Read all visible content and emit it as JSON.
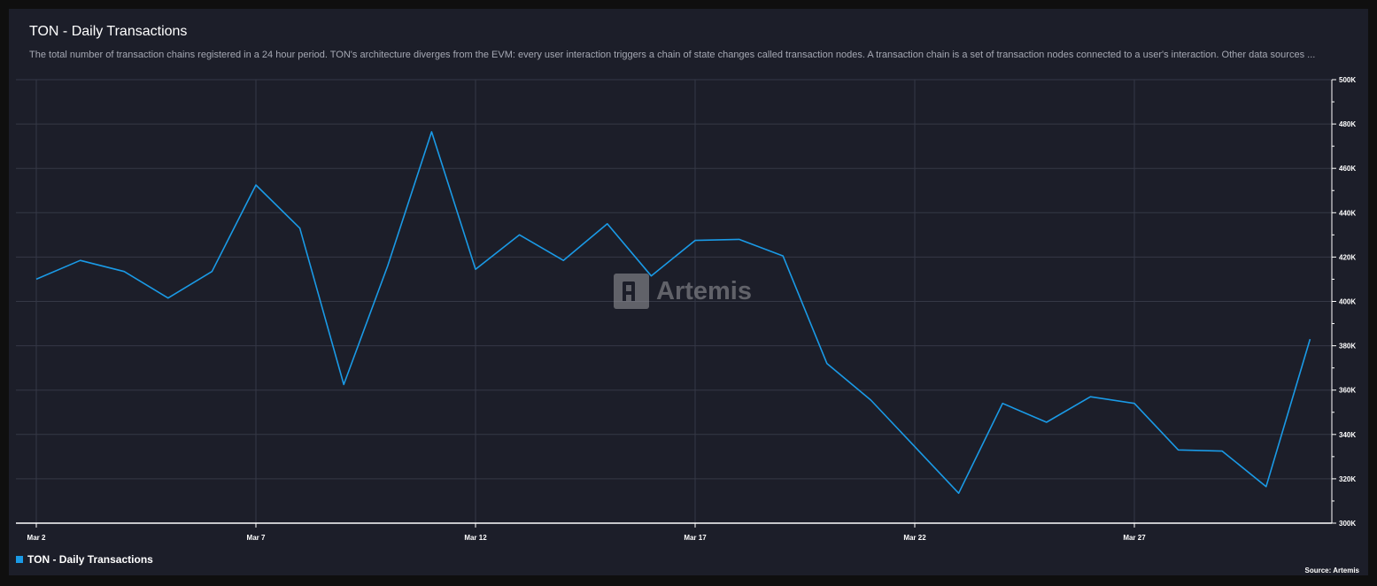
{
  "header": {
    "title": "TON - Daily Transactions",
    "description": "The total number of transaction chains registered in a 24 hour period. TON's architecture diverges from the EVM: every user interaction triggers a chain of state changes called transaction nodes. A transaction chain is a set of transaction nodes connected to a user's interaction. Other data sources ..."
  },
  "legend": {
    "label": "TON - Daily Transactions",
    "color": "#1a9ae6"
  },
  "source": "Source: Artemis",
  "watermark": "Artemis",
  "chart_data": {
    "type": "line",
    "title": "TON - Daily Transactions",
    "xlabel": "",
    "ylabel": "",
    "ylim": [
      300000,
      500000
    ],
    "y_ticks": [
      "500K",
      "480K",
      "460K",
      "440K",
      "420K",
      "400K",
      "380K",
      "360K",
      "340K",
      "320K",
      "300K"
    ],
    "x_ticks": [
      "Mar 2",
      "Mar 7",
      "Mar 12",
      "Mar 17",
      "Mar 22",
      "Mar 27"
    ],
    "grid": true,
    "y_axis_position": "right",
    "legend_position": "bottom-left",
    "series": [
      {
        "name": "TON - Daily Transactions",
        "color": "#1a9ae6",
        "x": [
          "Mar 2",
          "Mar 3",
          "Mar 4",
          "Mar 5",
          "Mar 6",
          "Mar 7",
          "Mar 8",
          "Mar 9",
          "Mar 10",
          "Mar 11",
          "Mar 12",
          "Mar 13",
          "Mar 14",
          "Mar 15",
          "Mar 16",
          "Mar 17",
          "Mar 18",
          "Mar 19",
          "Mar 20",
          "Mar 21",
          "Mar 22",
          "Mar 23",
          "Mar 24",
          "Mar 25",
          "Mar 26",
          "Mar 27",
          "Mar 28",
          "Mar 29",
          "Mar 30",
          "Mar 31"
        ],
        "values": [
          410000,
          418500,
          413500,
          401500,
          413500,
          452500,
          433000,
          362500,
          416000,
          476500,
          414500,
          430000,
          418500,
          435000,
          411500,
          427500,
          428000,
          420500,
          372000,
          355500,
          334500,
          313500,
          354000,
          345500,
          357000,
          354000,
          333000,
          332500,
          316500,
          383000
        ]
      }
    ]
  }
}
